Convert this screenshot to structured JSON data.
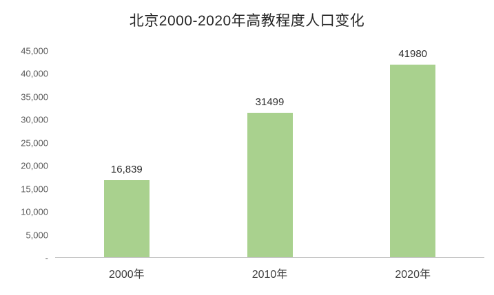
{
  "title": "北京2000-2020年高教程度人口变化",
  "colors": {
    "bar": "#a9d18e",
    "axis_line": "#c6c6c6",
    "tick_text": "#595959",
    "value_label_text": "#2e2e2e",
    "category_text": "#3f3f3f",
    "title_text": "#262626",
    "background": "#ffffff"
  },
  "chart_data": {
    "type": "bar",
    "title": "北京2000-2020年高教程度人口变化",
    "categories": [
      "2000年",
      "2010年",
      "2020年"
    ],
    "values": [
      16839,
      31499,
      41980
    ],
    "data_labels": [
      "16,839",
      "31499",
      "41980"
    ],
    "xlabel": "",
    "ylabel": "",
    "ylim": [
      0,
      45000
    ],
    "yticks": [
      {
        "value": 0,
        "label": "-"
      },
      {
        "value": 5000,
        "label": "5,000"
      },
      {
        "value": 10000,
        "label": "10,000"
      },
      {
        "value": 15000,
        "label": "15,000"
      },
      {
        "value": 20000,
        "label": "20,000"
      },
      {
        "value": 25000,
        "label": "25,000"
      },
      {
        "value": 30000,
        "label": "30,000"
      },
      {
        "value": 35000,
        "label": "35,000"
      },
      {
        "value": 40000,
        "label": "40,000"
      },
      {
        "value": 45000,
        "label": "45,000"
      }
    ],
    "grid": false,
    "legend": false
  }
}
